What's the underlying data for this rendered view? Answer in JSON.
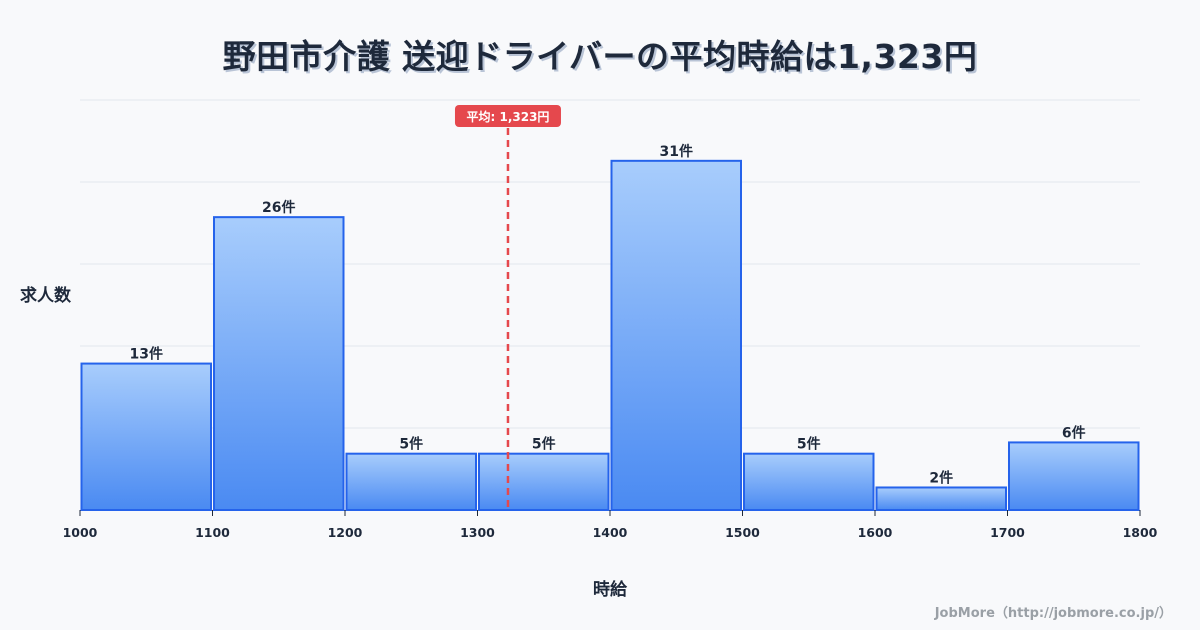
{
  "title": "野田市介護 送迎ドライバーの平均時給は1,323円",
  "credit": "JobMore（http://jobmore.co.jp/）",
  "colors": {
    "background": "#f8f9fb",
    "bar_top": "#a8cdfc",
    "bar_bottom": "#4a8af2",
    "bar_border": "#2563eb",
    "avg_line": "#e5484d",
    "gridline": "#e2e6ee",
    "text": "#1e293b"
  },
  "chart_data": {
    "type": "bar",
    "subtype": "histogram",
    "title": "野田市介護 送迎ドライバーの平均時給は1,323円",
    "xlabel": "時給",
    "ylabel": "求人数",
    "bins": [
      {
        "from": 1000,
        "to": 1100,
        "count": 13,
        "label": "13件"
      },
      {
        "from": 1100,
        "to": 1200,
        "count": 26,
        "label": "26件"
      },
      {
        "from": 1200,
        "to": 1300,
        "count": 5,
        "label": "5件"
      },
      {
        "from": 1300,
        "to": 1400,
        "count": 5,
        "label": "5件"
      },
      {
        "from": 1400,
        "to": 1500,
        "count": 31,
        "label": "31件"
      },
      {
        "from": 1500,
        "to": 1600,
        "count": 5,
        "label": "5件"
      },
      {
        "from": 1600,
        "to": 1700,
        "count": 2,
        "label": "2件"
      },
      {
        "from": 1700,
        "to": 1800,
        "count": 6,
        "label": "6件"
      }
    ],
    "categories": [
      "1000-1100",
      "1100-1200",
      "1200-1300",
      "1300-1400",
      "1400-1500",
      "1500-1600",
      "1600-1700",
      "1700-1800"
    ],
    "values": [
      13,
      26,
      5,
      5,
      31,
      5,
      2,
      6
    ],
    "x_ticks": [
      "1000",
      "1100",
      "1200",
      "1300",
      "1400",
      "1500",
      "1600",
      "1700",
      "1800"
    ],
    "xlim": [
      1000,
      1800
    ],
    "ylim": [
      0,
      36.4
    ],
    "grid": true,
    "grid_axis": "y",
    "y_ticks_shown": false,
    "annotations": [
      {
        "type": "vline",
        "x": 1323,
        "style": "dashed",
        "color": "#e5484d",
        "label": "平均: 1,323円"
      }
    ]
  }
}
